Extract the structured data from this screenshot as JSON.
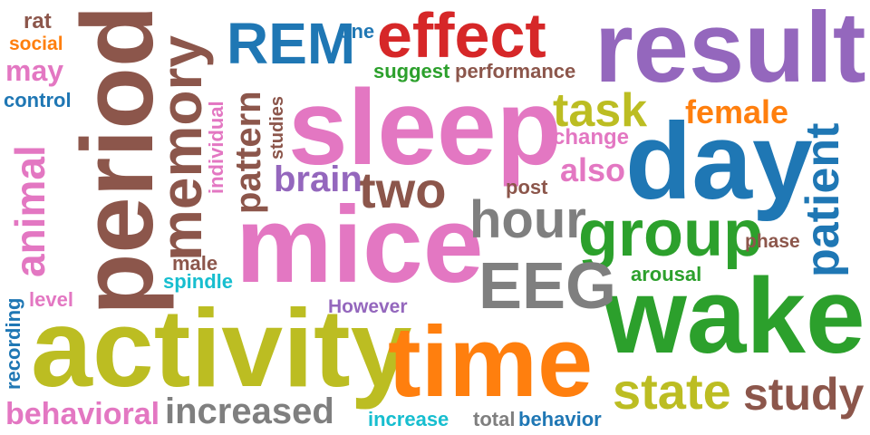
{
  "cloud": {
    "words": [
      {
        "text": "sleep",
        "color": "#e377c2"
      },
      {
        "text": "mice",
        "color": "#e377c2"
      },
      {
        "text": "activity",
        "color": "#bcbd22"
      },
      {
        "text": "time",
        "color": "#ff7f0e"
      },
      {
        "text": "wake",
        "color": "#2ca02c"
      },
      {
        "text": "day",
        "color": "#1f77b4"
      },
      {
        "text": "result",
        "color": "#9467bd"
      },
      {
        "text": "period",
        "color": "#8c564b"
      },
      {
        "text": "memory",
        "color": "#8c564b"
      },
      {
        "text": "effect",
        "color": "#d62728"
      },
      {
        "text": "REM",
        "color": "#1f77b4"
      },
      {
        "text": "group",
        "color": "#2ca02c"
      },
      {
        "text": "EEG",
        "color": "#7f7f7f"
      },
      {
        "text": "hour",
        "color": "#7f7f7f"
      },
      {
        "text": "state",
        "color": "#bcbd22"
      },
      {
        "text": "study",
        "color": "#8c564b"
      },
      {
        "text": "patient",
        "color": "#1f77b4"
      },
      {
        "text": "animal",
        "color": "#e377c2"
      },
      {
        "text": "two",
        "color": "#8c564b"
      },
      {
        "text": "task",
        "color": "#bcbd22"
      },
      {
        "text": "pattern",
        "color": "#8c564b"
      },
      {
        "text": "brain",
        "color": "#9467bd"
      },
      {
        "text": "increased",
        "color": "#7f7f7f"
      },
      {
        "text": "behavioral",
        "color": "#e377c2"
      },
      {
        "text": "female",
        "color": "#ff7f0e"
      },
      {
        "text": "also",
        "color": "#e377c2"
      },
      {
        "text": "may",
        "color": "#e377c2"
      },
      {
        "text": "social",
        "color": "#ff7f0e"
      },
      {
        "text": "rat",
        "color": "#8c564b"
      },
      {
        "text": "control",
        "color": "#1f77b4"
      },
      {
        "text": "one",
        "color": "#1f77b4"
      },
      {
        "text": "suggest",
        "color": "#2ca02c"
      },
      {
        "text": "performance",
        "color": "#8c564b"
      },
      {
        "text": "change",
        "color": "#e377c2"
      },
      {
        "text": "post",
        "color": "#8c564b"
      },
      {
        "text": "individual",
        "color": "#e377c2"
      },
      {
        "text": "studies",
        "color": "#8c564b"
      },
      {
        "text": "male",
        "color": "#8c564b"
      },
      {
        "text": "spindle",
        "color": "#17becf"
      },
      {
        "text": "level",
        "color": "#e377c2"
      },
      {
        "text": "recording",
        "color": "#1f77b4"
      },
      {
        "text": "However",
        "color": "#9467bd"
      },
      {
        "text": "phase",
        "color": "#8c564b"
      },
      {
        "text": "arousal",
        "color": "#2ca02c"
      },
      {
        "text": "increase",
        "color": "#17becf"
      },
      {
        "text": "total",
        "color": "#7f7f7f"
      },
      {
        "text": "behavior",
        "color": "#1f77b4"
      }
    ]
  }
}
